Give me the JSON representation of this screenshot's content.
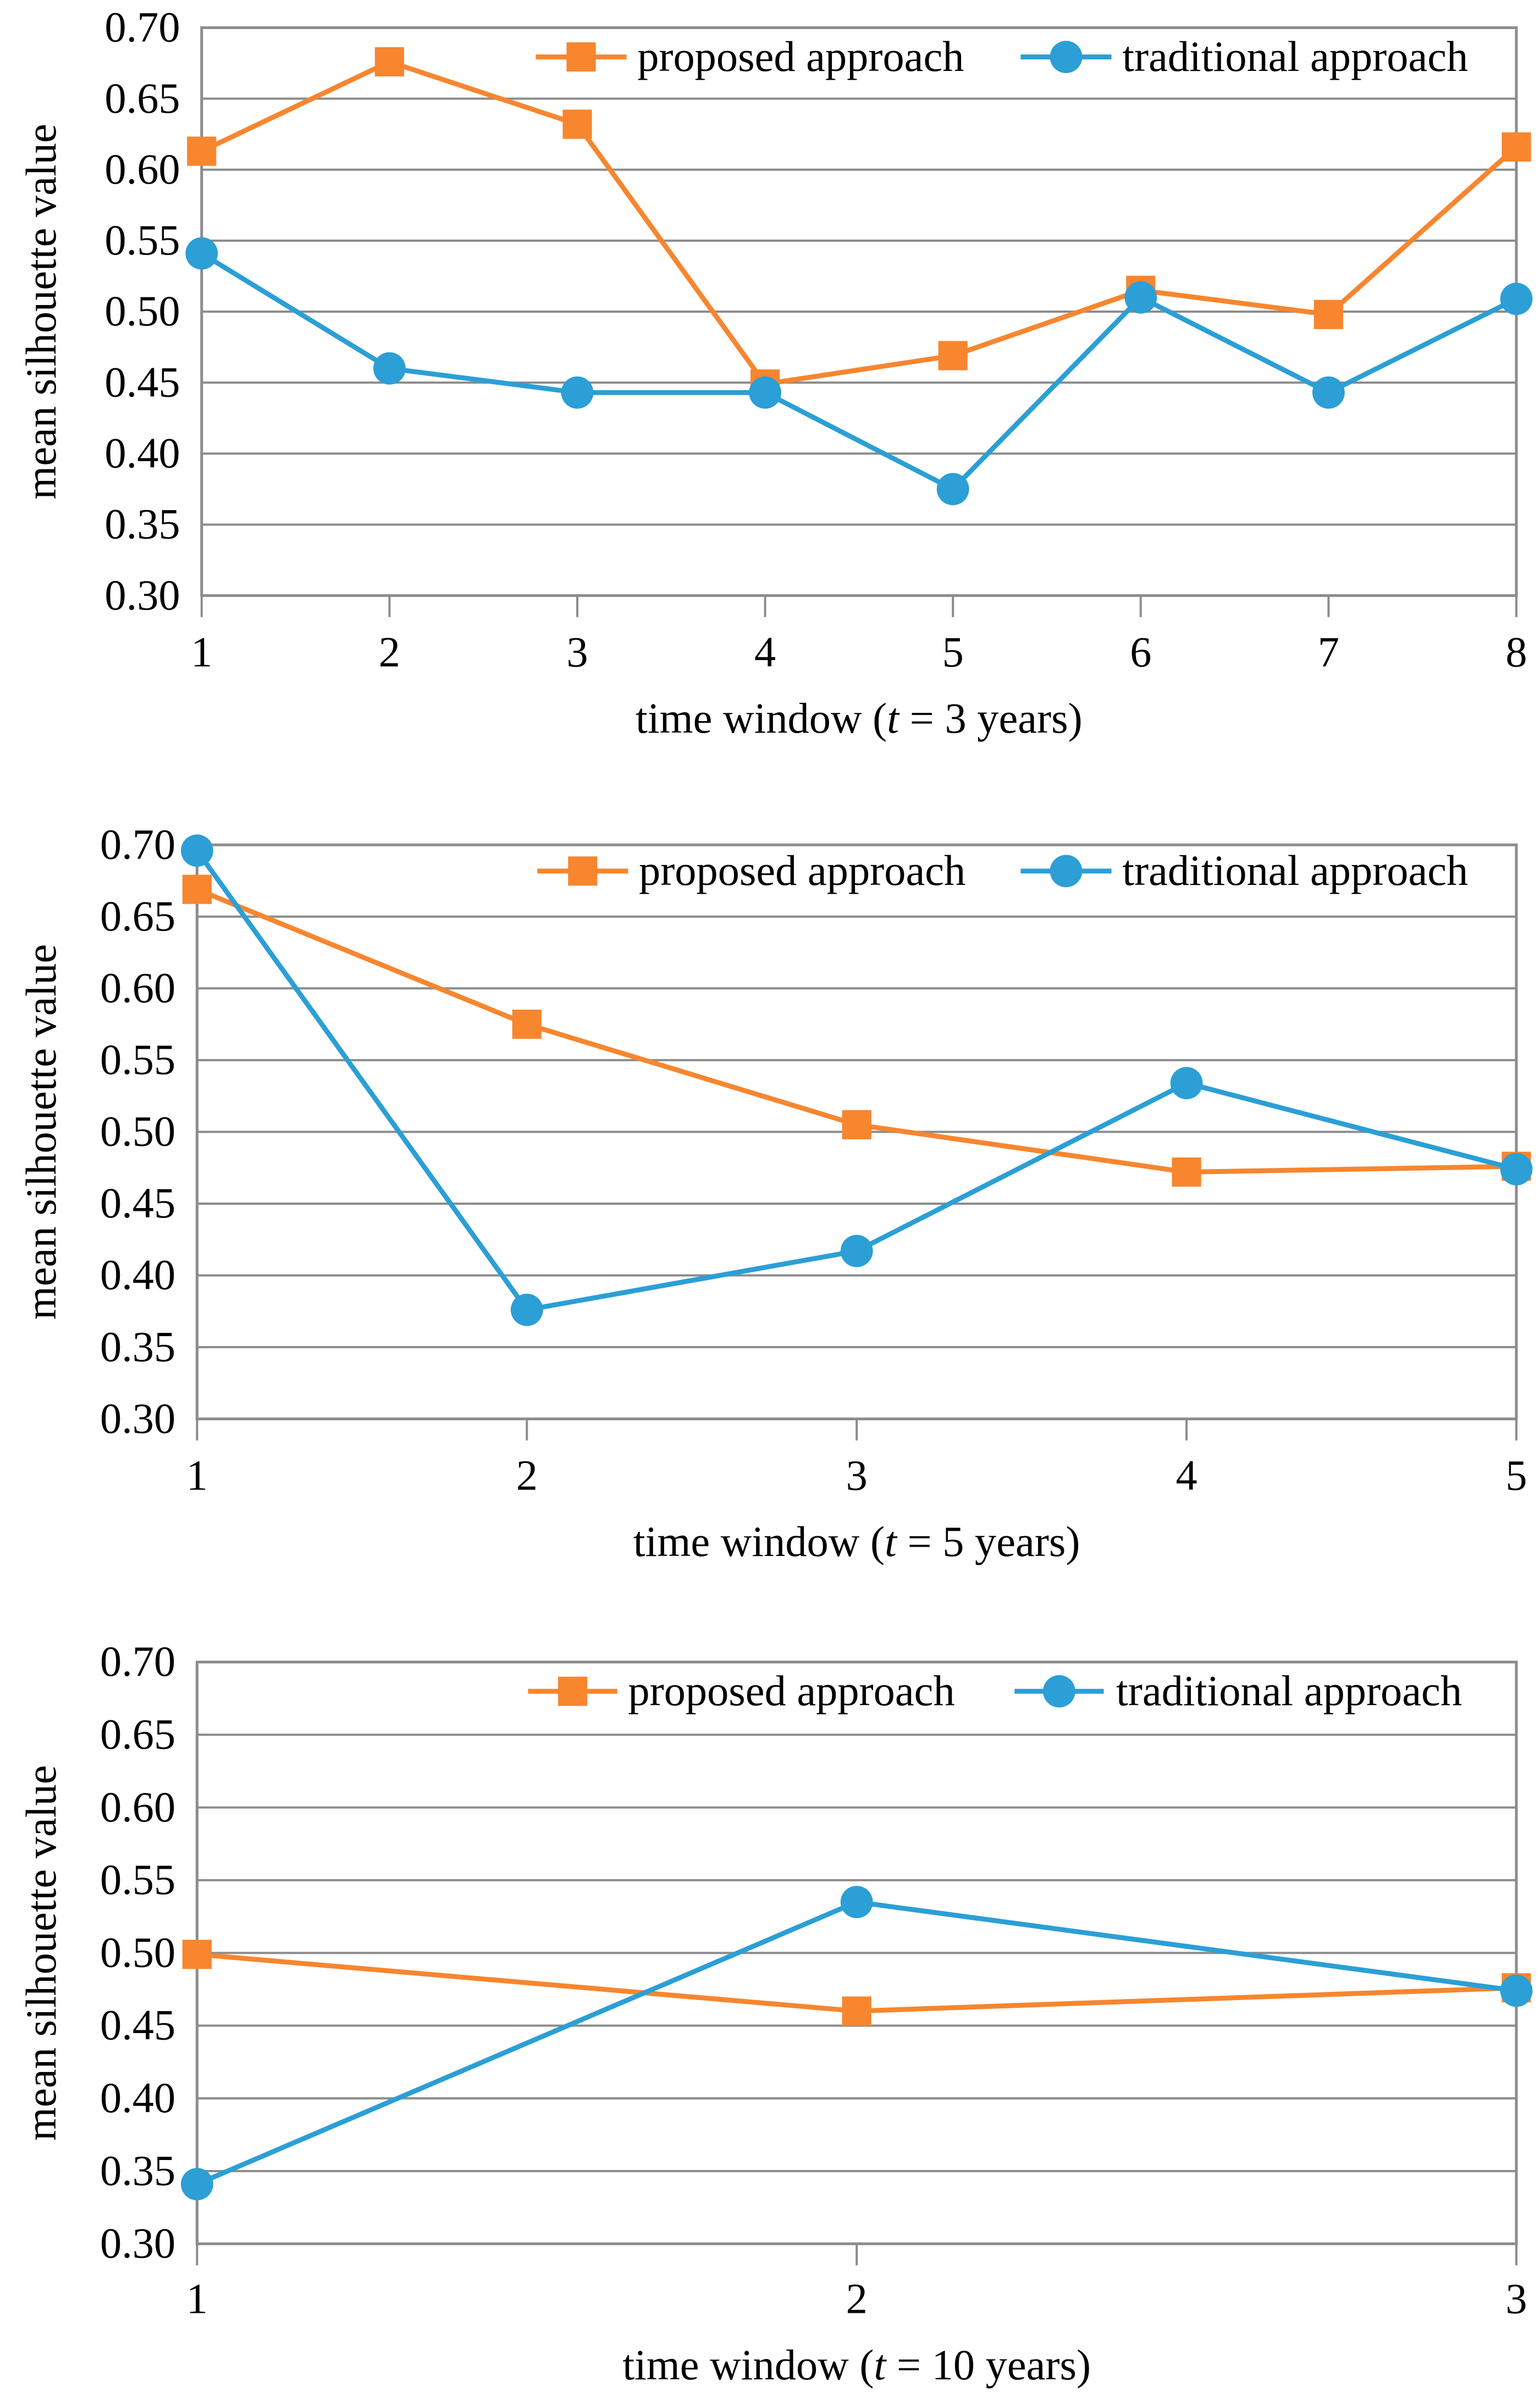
{
  "colors": {
    "proposed": "#F7862F",
    "traditional": "#2B9FD6",
    "grid": "#8C8C8C",
    "frame": "#8C8C8C"
  },
  "legend_position": "top-right",
  "chart_data": [
    {
      "type": "line",
      "ylabel": "mean silhouette value",
      "xlabel_parts": [
        "time window (",
        "t",
        " = 3 years)"
      ],
      "x": [
        1,
        2,
        3,
        4,
        5,
        6,
        7,
        8
      ],
      "ylim": [
        0.3,
        0.7
      ],
      "yticks": [
        "0.30",
        "0.35",
        "0.40",
        "0.45",
        "0.50",
        "0.55",
        "0.60",
        "0.65",
        "0.70"
      ],
      "grid": true,
      "legend": "top-right",
      "series": [
        {
          "name": "proposed approach",
          "color": "#F7862F",
          "marker": "square",
          "values": [
            0.613,
            0.676,
            0.632,
            0.449,
            0.469,
            0.515,
            0.498,
            0.616
          ]
        },
        {
          "name": "traditional approach",
          "color": "#2B9FD6",
          "marker": "circle",
          "values": [
            0.541,
            0.46,
            0.443,
            0.443,
            0.375,
            0.51,
            0.443,
            0.509
          ]
        }
      ]
    },
    {
      "type": "line",
      "ylabel": "mean silhouette value",
      "xlabel_parts": [
        "time window (",
        "t",
        " = 5 years)"
      ],
      "x": [
        1,
        2,
        3,
        4,
        5
      ],
      "ylim": [
        0.3,
        0.7
      ],
      "yticks": [
        "0.30",
        "0.35",
        "0.40",
        "0.45",
        "0.50",
        "0.55",
        "0.60",
        "0.65",
        "0.70"
      ],
      "grid": true,
      "legend": "top-right",
      "series": [
        {
          "name": "proposed approach",
          "color": "#F7862F",
          "marker": "square",
          "values": [
            0.669,
            0.575,
            0.505,
            0.472,
            0.476
          ]
        },
        {
          "name": "traditional approach",
          "color": "#2B9FD6",
          "marker": "circle",
          "values": [
            0.696,
            0.376,
            0.417,
            0.534,
            0.474
          ]
        }
      ]
    },
    {
      "type": "line",
      "ylabel": "mean silhouette value",
      "xlabel_parts": [
        "time window (",
        "t",
        " = 10 years)"
      ],
      "x": [
        1,
        2,
        3
      ],
      "ylim": [
        0.3,
        0.7
      ],
      "yticks": [
        "0.30",
        "0.35",
        "0.40",
        "0.45",
        "0.50",
        "0.55",
        "0.60",
        "0.65",
        "0.70"
      ],
      "grid": true,
      "legend": "top-right",
      "series": [
        {
          "name": "proposed approach",
          "color": "#F7862F",
          "marker": "square",
          "values": [
            0.499,
            0.46,
            0.476
          ]
        },
        {
          "name": "traditional approach",
          "color": "#2B9FD6",
          "marker": "circle",
          "values": [
            0.341,
            0.535,
            0.474
          ]
        }
      ]
    }
  ]
}
